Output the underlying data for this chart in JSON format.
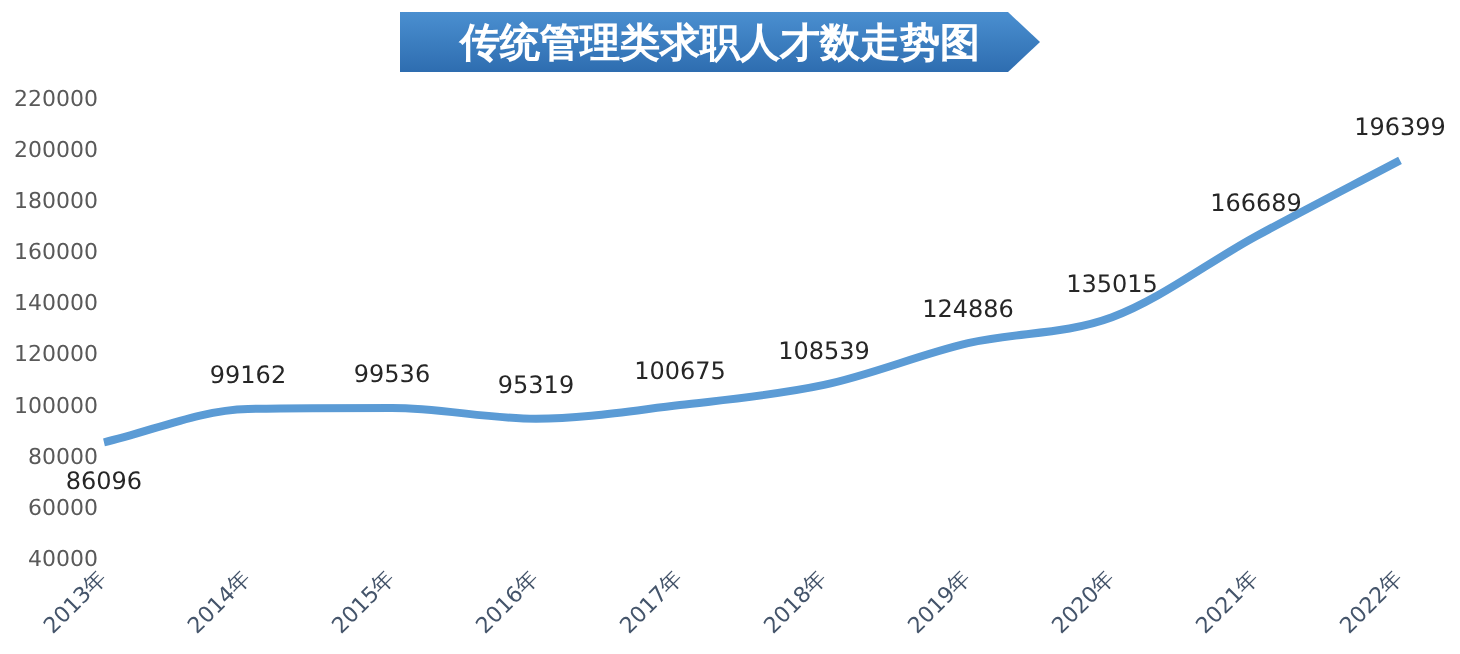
{
  "chart_data": {
    "type": "line",
    "title": "传统管理类求职人才数走势图",
    "categories": [
      "2013年",
      "2014年",
      "2015年",
      "2016年",
      "2017年",
      "2018年",
      "2019年",
      "2020年",
      "2021年",
      "2022年"
    ],
    "series": [
      {
        "color": "#5b9bd5",
        "values": [
          86096,
          99162,
          99536,
          95319,
          100675,
          108539,
          124886,
          135015,
          166689,
          196399
        ]
      }
    ],
    "ylim": [
      40000,
      220000
    ],
    "yticks": [
      40000,
      60000,
      80000,
      100000,
      120000,
      140000,
      160000,
      180000,
      200000,
      220000
    ],
    "grid": false,
    "legend": false,
    "marker": "none",
    "data_labels": true
  }
}
